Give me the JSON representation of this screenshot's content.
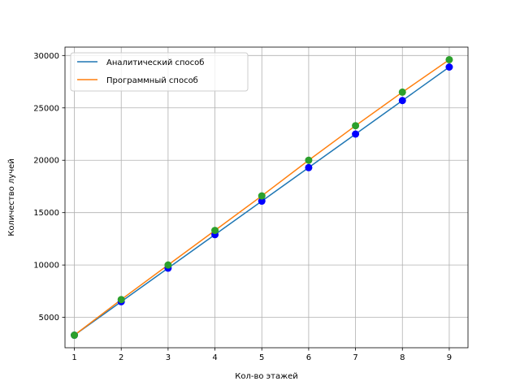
{
  "chart_data": {
    "type": "line",
    "xlabel": "Кол-во этажей",
    "ylabel": "Количество лучей",
    "x": [
      1,
      2,
      3,
      4,
      5,
      6,
      7,
      8,
      9
    ],
    "xlim": [
      0.8,
      9.4
    ],
    "ylim": [
      2100,
      30800
    ],
    "xticks": [
      1,
      2,
      3,
      4,
      5,
      6,
      7,
      8,
      9
    ],
    "yticks": [
      5000,
      10000,
      15000,
      20000,
      25000,
      30000
    ],
    "grid": true,
    "legend_position": "top-left",
    "series": [
      {
        "name": "Аналитический способ",
        "color": "#1f77b4",
        "marker_color": "#0000ff",
        "values": [
          3300,
          6500,
          9700,
          12900,
          16100,
          19300,
          22500,
          25700,
          28900
        ]
      },
      {
        "name": "Программный способ",
        "color": "#ff7f0e",
        "marker_color": "#2ca02c",
        "values": [
          3300,
          6700,
          10000,
          13300,
          16600,
          20000,
          23300,
          26500,
          29600
        ]
      }
    ]
  }
}
